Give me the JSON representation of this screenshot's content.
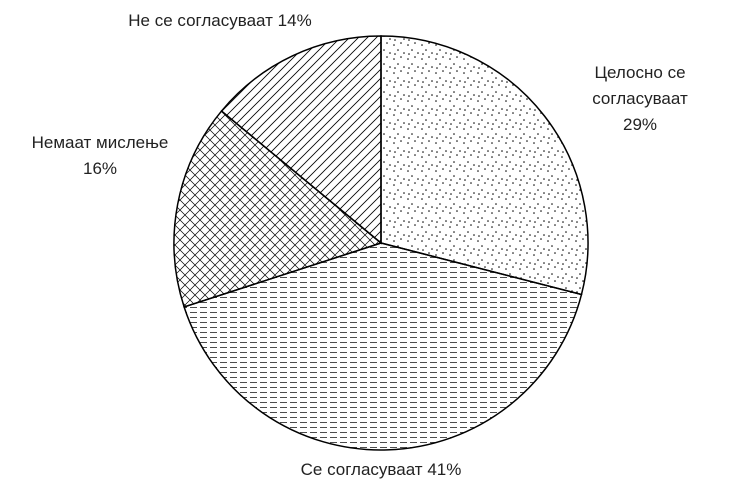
{
  "chart_data": {
    "type": "pie",
    "categories": [
      "Целосно се согласуваат",
      "Се согласуваат",
      "Немаат мислење",
      "Не се согласуваат"
    ],
    "values": [
      29,
      41,
      16,
      14
    ],
    "value_labels": [
      "29%",
      "41%",
      "16%",
      "14%"
    ],
    "color": "#000000"
  }
}
